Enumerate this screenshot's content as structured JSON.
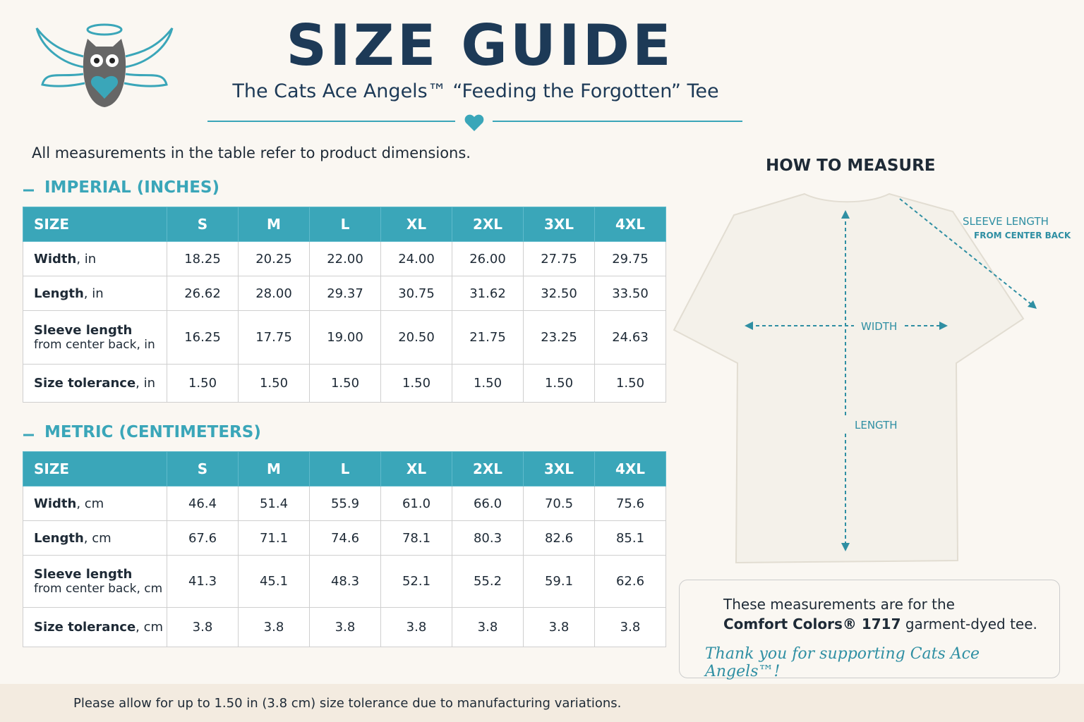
{
  "header": {
    "title": "SIZE GUIDE",
    "subtitle": "The Cats Ace Angels™ “Feeding the Forgotten” Tee"
  },
  "intro": "All measurements in the table refer to product dimensions.",
  "tables": [
    {
      "title": "IMPERIAL (INCHES)",
      "columns": [
        "SIZE",
        "S",
        "M",
        "L",
        "XL",
        "2XL",
        "3XL",
        "4XL"
      ],
      "rows": [
        {
          "label": "Width",
          "unit": ", in",
          "values": [
            "18.25",
            "20.25",
            "22.00",
            "24.00",
            "26.00",
            "27.75",
            "29.75"
          ]
        },
        {
          "label": "Length",
          "unit": ", in",
          "values": [
            "26.62",
            "28.00",
            "29.37",
            "30.75",
            "31.62",
            "32.50",
            "33.50"
          ]
        },
        {
          "label": "Sleeve length",
          "sub": "from center back, in",
          "values": [
            "16.25",
            "17.75",
            "19.00",
            "20.50",
            "21.75",
            "23.25",
            "24.63"
          ]
        },
        {
          "label": "Size tolerance",
          "unit": ", in",
          "values": [
            "1.50",
            "1.50",
            "1.50",
            "1.50",
            "1.50",
            "1.50",
            "1.50"
          ]
        }
      ]
    },
    {
      "title": "METRIC (CENTIMETERS)",
      "columns": [
        "SIZE",
        "S",
        "M",
        "L",
        "XL",
        "2XL",
        "3XL",
        "4XL"
      ],
      "rows": [
        {
          "label": "Width",
          "unit": ", cm",
          "values": [
            "46.4",
            "51.4",
            "55.9",
            "61.0",
            "66.0",
            "70.5",
            "75.6"
          ]
        },
        {
          "label": "Length",
          "unit": ", cm",
          "values": [
            "67.6",
            "71.1",
            "74.6",
            "78.1",
            "80.3",
            "82.6",
            "85.1"
          ]
        },
        {
          "label": "Sleeve length",
          "sub": "from center back, cm",
          "values": [
            "41.3",
            "45.1",
            "48.3",
            "52.1",
            "55.2",
            "59.1",
            "62.6"
          ]
        },
        {
          "label": "Size tolerance",
          "unit": ", cm",
          "values": [
            "3.8",
            "3.8",
            "3.8",
            "3.8",
            "3.8",
            "3.8",
            "3.8"
          ]
        }
      ]
    }
  ],
  "measure": {
    "title": "HOW TO MEASURE",
    "sleeve_label": "SLEEVE LENGTH",
    "sleeve_sub": "FROM CENTER BACK",
    "width_label": "WIDTH",
    "length_label": "LENGTH"
  },
  "note": {
    "line1": "These measurements are for the",
    "brand": "Comfort Colors® 1717",
    "line2": " garment-dyed tee.",
    "thanks": "Thank you for supporting Cats Ace Angels™!"
  },
  "footer": "Please allow for up to 1.50 in (3.8 cm) size tolerance due to manufacturing variations."
}
